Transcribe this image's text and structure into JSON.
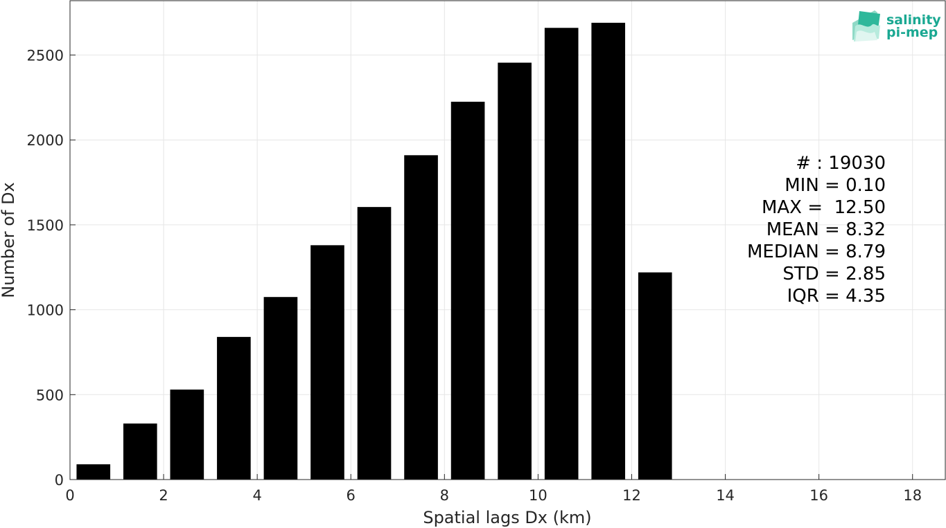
{
  "chart_data": {
    "type": "bar",
    "x": [
      0.5,
      1.5,
      2.5,
      3.5,
      4.5,
      5.5,
      6.5,
      7.5,
      8.5,
      9.5,
      10.5,
      11.5,
      12.5
    ],
    "values": [
      90,
      330,
      530,
      840,
      1075,
      1380,
      1605,
      1910,
      2225,
      2455,
      2660,
      2690,
      1220
    ],
    "bar_color": "#000000",
    "xlabel": "Spatial lags Dx (km)",
    "ylabel": "Number of Dx",
    "xlim": [
      0,
      18.7
    ],
    "ylim": [
      0,
      2820
    ],
    "xticks": [
      "0",
      "2",
      "4",
      "6",
      "8",
      "10",
      "12",
      "14",
      "16",
      "18"
    ],
    "yticks": [
      "0",
      "500",
      "1000",
      "1500",
      "2000",
      "2500"
    ],
    "grid": true,
    "annotations": [
      "# : 19030",
      "MIN = 0.10",
      "MAX =  12.50",
      "MEAN = 8.32",
      "MEDIAN = 8.79",
      "STD = 2.85",
      "IQR = 4.35"
    ]
  },
  "logo": {
    "line1": "salinity",
    "line2": "pi-mep",
    "color": "#1aa892"
  }
}
